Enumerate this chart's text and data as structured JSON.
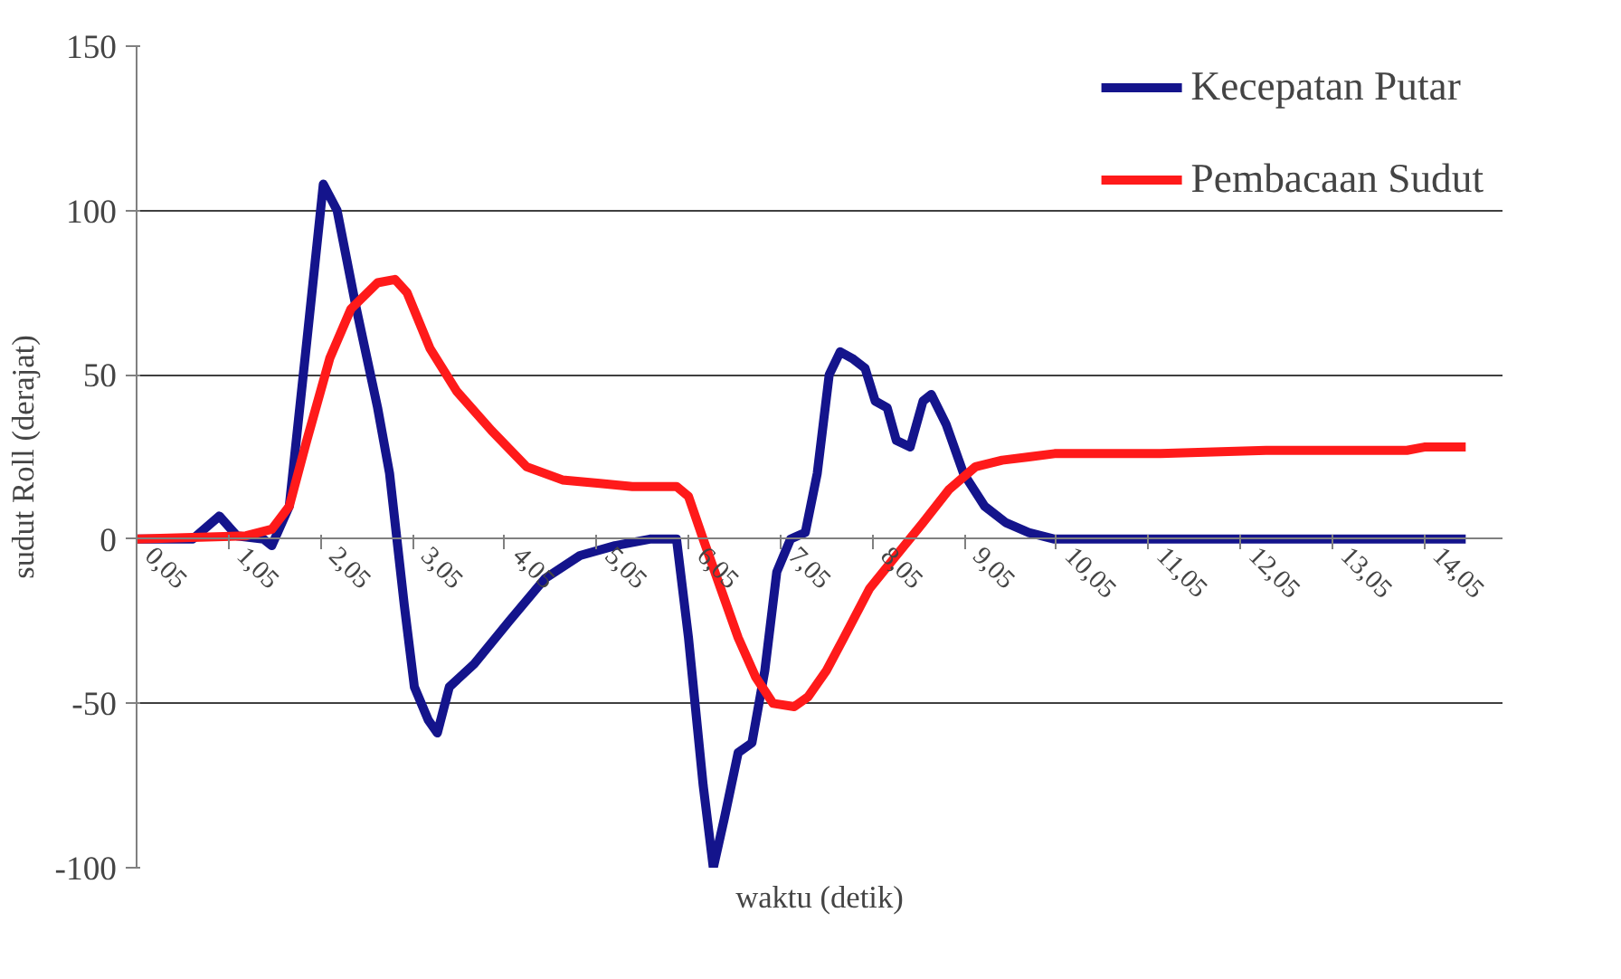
{
  "chart_data": {
    "type": "line",
    "xlabel": "waktu (detik)",
    "ylabel": "sudut Roll (derajat)",
    "xlim": [
      0.05,
      14.9
    ],
    "ylim": [
      -100,
      150
    ],
    "xticks": [
      {
        "value": 0.05,
        "label": "0,05"
      },
      {
        "value": 1.05,
        "label": "1,05"
      },
      {
        "value": 2.05,
        "label": "2,05"
      },
      {
        "value": 3.05,
        "label": "3,05"
      },
      {
        "value": 4.05,
        "label": "4,05"
      },
      {
        "value": 5.05,
        "label": "5,05"
      },
      {
        "value": 6.05,
        "label": "6,05"
      },
      {
        "value": 7.05,
        "label": "7,05"
      },
      {
        "value": 8.05,
        "label": "8,05"
      },
      {
        "value": 9.05,
        "label": "9,05"
      },
      {
        "value": 10.05,
        "label": "10,05"
      },
      {
        "value": 11.05,
        "label": "11,05"
      },
      {
        "value": 12.05,
        "label": "12,05"
      },
      {
        "value": 13.05,
        "label": "13,05"
      },
      {
        "value": 14.05,
        "label": "14,05"
      }
    ],
    "yticks": [
      -100,
      -50,
      0,
      50,
      100,
      150
    ],
    "grid": "y",
    "legend": "top right",
    "marker": "none",
    "line_style": "solid",
    "series": [
      {
        "name": "Kecepatan Putar",
        "color": "#14148c",
        "x": [
          0.05,
          0.66,
          0.95,
          1.14,
          1.43,
          1.52,
          1.71,
          1.9,
          2.08,
          2.23,
          2.44,
          2.67,
          2.8,
          2.96,
          3.07,
          3.22,
          3.32,
          3.45,
          3.72,
          4.1,
          4.49,
          4.87,
          5.25,
          5.63,
          5.82,
          5.92,
          6.05,
          6.21,
          6.32,
          6.44,
          6.59,
          6.74,
          6.88,
          7.01,
          7.16,
          7.32,
          7.45,
          7.58,
          7.7,
          7.83,
          7.97,
          8.08,
          8.21,
          8.31,
          8.46,
          8.6,
          8.69,
          8.85,
          9.04,
          9.27,
          9.5,
          9.75,
          10.03,
          10.41,
          14.5
        ],
        "values": [
          0,
          0,
          7,
          1,
          0,
          -2,
          10,
          60,
          108,
          100,
          70,
          40,
          20,
          -20,
          -45,
          -55,
          -59,
          -45,
          -38,
          -25,
          -12,
          -5,
          -2,
          0,
          0,
          0,
          -30,
          -75,
          -100,
          -85,
          -65,
          -62,
          -40,
          -10,
          0,
          2,
          20,
          50,
          57,
          55,
          52,
          42,
          40,
          30,
          28,
          42,
          44,
          35,
          20,
          10,
          5,
          2,
          0,
          0,
          0
        ]
      },
      {
        "name": "Pembacaan Sudut",
        "color": "#ff1a1a",
        "x": [
          0.05,
          1.24,
          1.52,
          1.71,
          1.9,
          2.15,
          2.38,
          2.67,
          2.86,
          2.99,
          3.24,
          3.53,
          3.91,
          4.29,
          4.68,
          5.06,
          5.44,
          5.92,
          6.05,
          6.21,
          6.4,
          6.59,
          6.78,
          6.97,
          7.2,
          7.35,
          7.55,
          7.74,
          8.02,
          8.31,
          8.6,
          8.88,
          9.17,
          9.46,
          9.75,
          10.03,
          11.18,
          12.33,
          13.86,
          14.05,
          14.5
        ],
        "values": [
          0,
          1,
          3,
          10,
          30,
          55,
          70,
          78,
          79,
          75,
          58,
          45,
          33,
          22,
          18,
          17,
          16,
          16,
          13,
          0,
          -15,
          -30,
          -42,
          -50,
          -51,
          -48,
          -40,
          -30,
          -15,
          -5,
          5,
          15,
          22,
          24,
          25,
          26,
          26,
          27,
          27,
          28,
          28
        ]
      }
    ]
  }
}
